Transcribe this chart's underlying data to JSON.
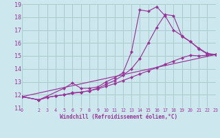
{
  "bg_color": "#cce8ee",
  "grid_color": "#aacccc",
  "line_color": "#993399",
  "xlim": [
    0,
    23
  ],
  "ylim": [
    11,
    19
  ],
  "xticks": [
    0,
    2,
    3,
    4,
    5,
    6,
    7,
    8,
    9,
    10,
    11,
    12,
    13,
    14,
    15,
    16,
    17,
    18,
    19,
    20,
    21,
    22,
    23
  ],
  "yticks": [
    11,
    12,
    13,
    14,
    15,
    16,
    17,
    18,
    19
  ],
  "xlabel": "Windchill (Refroidissement éolien,°C)",
  "lines": [
    {
      "x": [
        0,
        2,
        5,
        6,
        7,
        8,
        9,
        10,
        11,
        12,
        13,
        14,
        15,
        16,
        17,
        18,
        19,
        20,
        21,
        22,
        23
      ],
      "y": [
        11.85,
        11.6,
        12.5,
        12.9,
        12.5,
        12.5,
        12.6,
        13.0,
        13.3,
        13.7,
        15.3,
        18.55,
        18.45,
        18.8,
        18.1,
        17.0,
        16.55,
        16.1,
        15.6,
        15.2,
        15.1
      ]
    },
    {
      "x": [
        0,
        2,
        3,
        4,
        5,
        6,
        7,
        8,
        9,
        10,
        11,
        12,
        13,
        14,
        15,
        16,
        17,
        18,
        19,
        20,
        21,
        22,
        23
      ],
      "y": [
        11.85,
        11.6,
        11.8,
        11.9,
        12.0,
        12.15,
        12.2,
        12.3,
        12.5,
        12.8,
        13.1,
        13.5,
        14.0,
        14.8,
        16.0,
        17.2,
        18.2,
        18.1,
        16.5,
        16.1,
        15.55,
        15.15,
        15.1
      ]
    },
    {
      "x": [
        0,
        23
      ],
      "y": [
        11.85,
        15.1
      ]
    },
    {
      "x": [
        0,
        2,
        3,
        4,
        5,
        6,
        7,
        8,
        9,
        10,
        11,
        12,
        13,
        14,
        15,
        16,
        17,
        18,
        19,
        20,
        21,
        22,
        23
      ],
      "y": [
        11.85,
        11.6,
        11.8,
        11.9,
        12.0,
        12.1,
        12.2,
        12.3,
        12.45,
        12.65,
        12.85,
        13.1,
        13.35,
        13.6,
        13.85,
        14.1,
        14.35,
        14.6,
        14.85,
        15.05,
        15.0,
        15.05,
        15.1
      ]
    }
  ]
}
